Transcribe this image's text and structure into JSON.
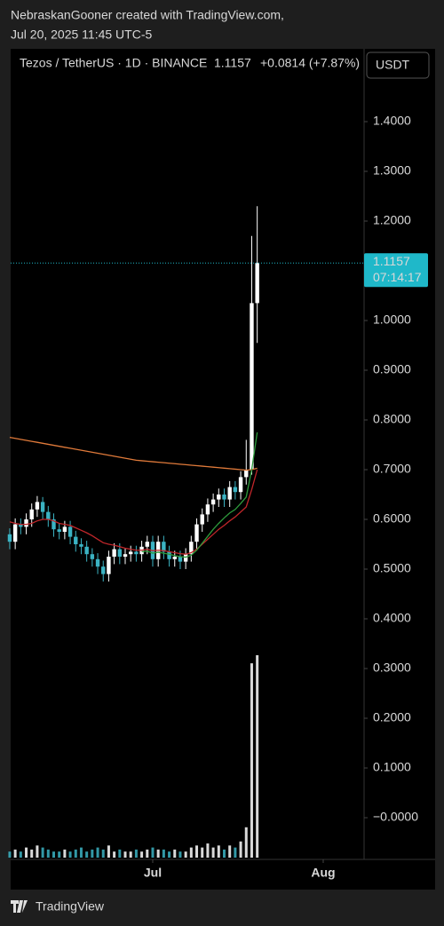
{
  "header": {
    "author_line": "NebraskanGooner created with TradingView.com,",
    "date_line": "Jul 20, 2025 11:45 UTC-5"
  },
  "chart_data": {
    "type": "candlestick",
    "title": "Tezos / TetherUS · 1D · BINANCE",
    "last_price": 1.1157,
    "change": "+0.0814 (+7.87%)",
    "currency": "USDT",
    "countdown": "07:14:17",
    "up_color": "#ffffff",
    "down_color": "#3bb3c3",
    "x": [
      0,
      1,
      2,
      3,
      4,
      5,
      6,
      7,
      8,
      9,
      10,
      11,
      12,
      13,
      14,
      15,
      16,
      17,
      18,
      19,
      20,
      21,
      22,
      23,
      24,
      25,
      26,
      27,
      28,
      29,
      30,
      31,
      32,
      33,
      34,
      35,
      36,
      37,
      38,
      39,
      40,
      41,
      42,
      43,
      44,
      45
    ],
    "open": [
      0.57,
      0.555,
      0.59,
      0.585,
      0.6,
      0.62,
      0.635,
      0.615,
      0.6,
      0.58,
      0.575,
      0.585,
      0.565,
      0.55,
      0.545,
      0.53,
      0.52,
      0.505,
      0.49,
      0.525,
      0.54,
      0.525,
      0.53,
      0.535,
      0.53,
      0.545,
      0.555,
      0.52,
      0.555,
      0.535,
      0.52,
      0.525,
      0.515,
      0.53,
      0.555,
      0.59,
      0.61,
      0.63,
      0.64,
      0.65,
      0.64,
      0.665,
      0.655,
      0.685,
      0.7,
      1.035
    ],
    "high": [
      0.582,
      0.602,
      0.602,
      0.612,
      0.632,
      0.647,
      0.645,
      0.627,
      0.612,
      0.592,
      0.597,
      0.597,
      0.577,
      0.562,
      0.557,
      0.542,
      0.532,
      0.517,
      0.537,
      0.552,
      0.552,
      0.542,
      0.547,
      0.547,
      0.557,
      0.567,
      0.567,
      0.567,
      0.567,
      0.547,
      0.537,
      0.537,
      0.542,
      0.567,
      0.602,
      0.622,
      0.642,
      0.652,
      0.662,
      0.662,
      0.677,
      0.677,
      0.697,
      0.76,
      1.17,
      1.23
    ],
    "low": [
      0.54,
      0.54,
      0.57,
      0.57,
      0.585,
      0.605,
      0.6,
      0.585,
      0.565,
      0.56,
      0.56,
      0.55,
      0.535,
      0.53,
      0.515,
      0.505,
      0.49,
      0.475,
      0.475,
      0.51,
      0.51,
      0.51,
      0.515,
      0.515,
      0.515,
      0.53,
      0.505,
      0.505,
      0.52,
      0.505,
      0.505,
      0.5,
      0.5,
      0.515,
      0.54,
      0.575,
      0.595,
      0.615,
      0.625,
      0.625,
      0.625,
      0.64,
      0.64,
      0.67,
      0.69,
      0.955
    ],
    "close": [
      0.555,
      0.59,
      0.585,
      0.6,
      0.62,
      0.635,
      0.615,
      0.6,
      0.58,
      0.575,
      0.585,
      0.565,
      0.55,
      0.545,
      0.53,
      0.52,
      0.505,
      0.49,
      0.525,
      0.54,
      0.525,
      0.53,
      0.535,
      0.53,
      0.545,
      0.555,
      0.52,
      0.555,
      0.535,
      0.52,
      0.525,
      0.515,
      0.53,
      0.555,
      0.59,
      0.61,
      0.63,
      0.64,
      0.65,
      0.64,
      0.665,
      0.655,
      0.685,
      0.7,
      1.035,
      1.1157
    ],
    "lines": [
      {
        "color": "#e07a3a",
        "values": [
          0.765,
          0.763,
          0.761,
          0.759,
          0.757,
          0.755,
          0.753,
          0.751,
          0.749,
          0.747,
          0.745,
          0.743,
          0.741,
          0.739,
          0.737,
          0.735,
          0.733,
          0.731,
          0.729,
          0.727,
          0.725,
          0.723,
          0.721,
          0.719,
          0.718,
          0.717,
          0.716,
          0.715,
          0.714,
          0.713,
          0.712,
          0.711,
          0.71,
          0.709,
          0.708,
          0.707,
          0.706,
          0.705,
          0.704,
          0.703,
          0.702,
          0.701,
          0.7,
          0.699,
          0.7,
          0.703
        ]
      },
      {
        "color": "#c0262a",
        "values": [
          0.595,
          0.592,
          0.59,
          0.59,
          0.592,
          0.597,
          0.6,
          0.6,
          0.597,
          0.592,
          0.59,
          0.588,
          0.583,
          0.578,
          0.573,
          0.567,
          0.56,
          0.553,
          0.55,
          0.548,
          0.545,
          0.542,
          0.54,
          0.538,
          0.538,
          0.54,
          0.537,
          0.538,
          0.537,
          0.535,
          0.533,
          0.531,
          0.53,
          0.533,
          0.54,
          0.55,
          0.56,
          0.57,
          0.58,
          0.588,
          0.597,
          0.605,
          0.615,
          0.625,
          0.66,
          0.7
        ]
      },
      {
        "color": "#2e9a3c",
        "values": [
          null,
          null,
          null,
          null,
          null,
          null,
          null,
          null,
          null,
          null,
          null,
          null,
          null,
          null,
          null,
          null,
          null,
          null,
          null,
          null,
          null,
          null,
          null,
          null,
          0.535,
          0.536,
          0.532,
          0.534,
          0.532,
          0.53,
          0.527,
          0.525,
          0.524,
          0.528,
          0.538,
          0.552,
          0.566,
          0.58,
          0.592,
          0.603,
          0.613,
          0.62,
          0.632,
          0.645,
          0.7,
          0.775
        ]
      }
    ],
    "volume": [
      3,
      4,
      3,
      5,
      4,
      6,
      5,
      4,
      3,
      3,
      4,
      3,
      4,
      5,
      3,
      4,
      5,
      4,
      6,
      3,
      4,
      3,
      3,
      4,
      3,
      4,
      5,
      4,
      4,
      3,
      4,
      3,
      3,
      5,
      6,
      5,
      7,
      5,
      6,
      4,
      6,
      5,
      8,
      15,
      96,
      100
    ],
    "volume_lim": [
      0,
      100
    ],
    "xlim": [
      0.17,
      64.43
    ],
    "xticks": [
      {
        "value": 26,
        "label": "Jul"
      },
      {
        "value": 57,
        "label": "Aug"
      }
    ],
    "ylim": [
      -0.0839,
      1.5464
    ],
    "yticks": [
      {
        "value": 1.4,
        "label": "1.4000"
      },
      {
        "value": 1.3,
        "label": "1.3000"
      },
      {
        "value": 1.2,
        "label": "1.2000"
      },
      {
        "value": 1.0,
        "label": "1.0000"
      },
      {
        "value": 0.9,
        "label": "0.9000"
      },
      {
        "value": 0.8,
        "label": "0.8000"
      },
      {
        "value": 0.7,
        "label": "0.7000"
      },
      {
        "value": 0.6,
        "label": "0.6000"
      },
      {
        "value": 0.5,
        "label": "0.5000"
      },
      {
        "value": 0.4,
        "label": "0.4000"
      },
      {
        "value": 0.3,
        "label": "0.3000"
      },
      {
        "value": 0.2,
        "label": "0.2000"
      },
      {
        "value": 0.1,
        "label": "0.1000"
      },
      {
        "value": 0,
        "label": "−0.0000"
      }
    ]
  },
  "footer": {
    "brand": "TradingView"
  }
}
